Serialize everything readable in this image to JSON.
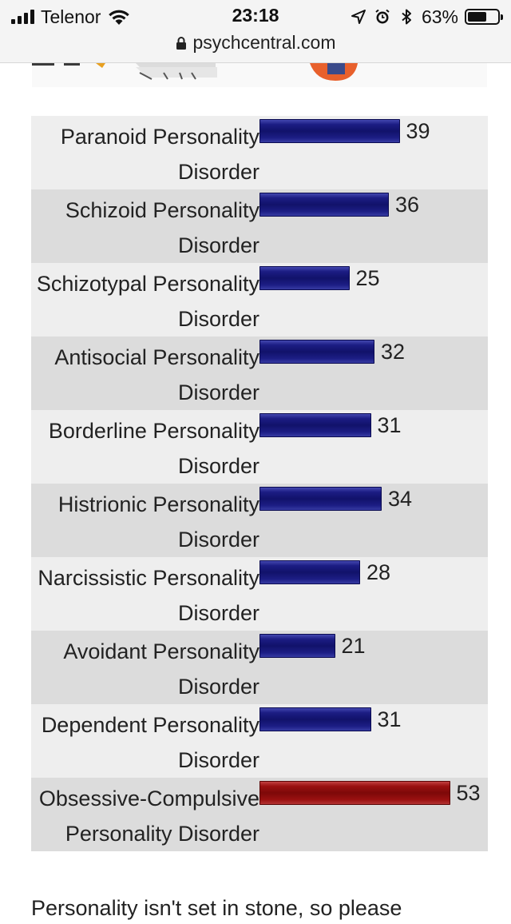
{
  "status_bar": {
    "carrier": "Telenor",
    "time": "23:18",
    "battery_percent": "63%",
    "battery_level": 0.63,
    "signal_bars": 4,
    "icons": [
      "signal-icon",
      "wifi-icon",
      "location-arrow-icon",
      "alarm-icon",
      "bluetooth-icon",
      "battery-icon"
    ]
  },
  "browser": {
    "url": "psychcentral.com",
    "lock_icon": "lock-icon"
  },
  "colors": {
    "bar_normal": "#1c1d84",
    "bar_highlight": "#9a1010",
    "row_light": "#eeeeee",
    "row_dark": "#dcdcdc"
  },
  "chart_data": {
    "type": "bar",
    "orientation": "horizontal",
    "categories": [
      "Paranoid Personality Disorder",
      "Schizoid Personality Disorder",
      "Schizotypal Personality Disorder",
      "Antisocial Personality Disorder",
      "Borderline Personality Disorder",
      "Histrionic Personality Disorder",
      "Narcissistic Personality Disorder",
      "Avoidant Personality Disorder",
      "Dependent Personality Disorder",
      "Obsessive-Compulsive Personality Disorder"
    ],
    "values": [
      39,
      36,
      25,
      32,
      31,
      34,
      28,
      21,
      31,
      53
    ],
    "highlight_index": 9,
    "xlim": [
      0,
      60
    ],
    "grid": false,
    "legend": "none"
  },
  "footer_text": "Personality isn't set in stone, so please"
}
